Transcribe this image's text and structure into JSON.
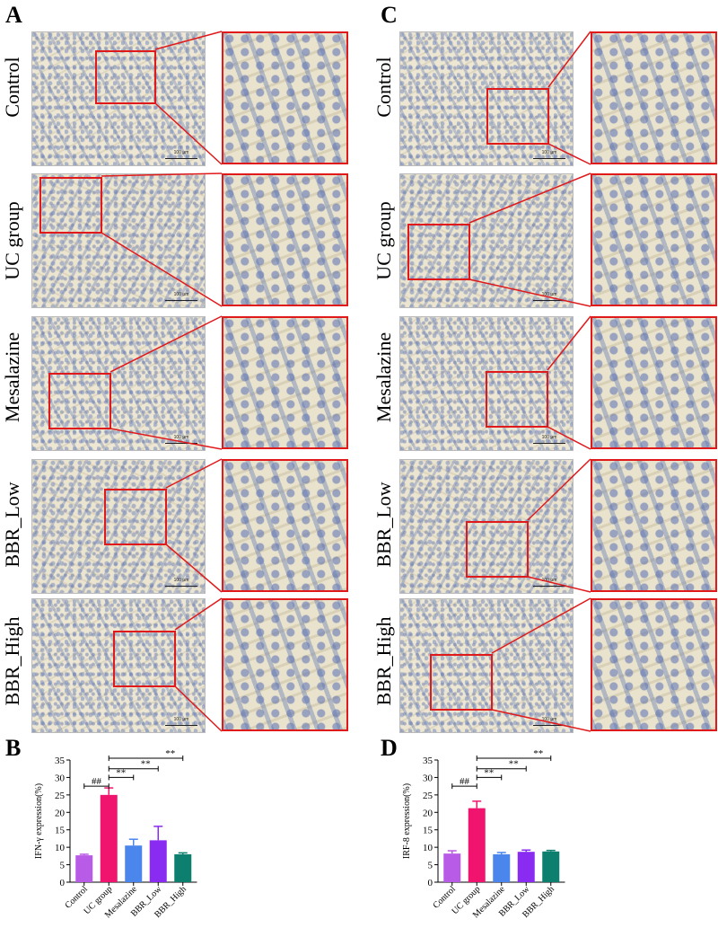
{
  "panels": {
    "a": "A",
    "b": "B",
    "c": "C",
    "d": "D"
  },
  "row_labels": [
    "Control",
    "UC group",
    "Mesalazine",
    "BBR_Low",
    "BBR_High"
  ],
  "scale_bar_label": "100 μm",
  "colors": {
    "highlight_box": "#e0191b",
    "control": "#b85be6",
    "uc_group": "#f0146e",
    "mesalazine": "#4a86ec",
    "bbr_low": "#8a2bf2",
    "bbr_high": "#0d7f6f"
  },
  "chart_data": [
    {
      "type": "bar",
      "panel": "B",
      "categories": [
        "Control",
        "UC group",
        "Mesalazine",
        "BBR_Low",
        "BBR_High"
      ],
      "values": [
        7.7,
        25.0,
        10.5,
        12.0,
        8.0
      ],
      "errors": [
        0.3,
        2.0,
        1.8,
        4.0,
        0.4
      ],
      "ylabel": "IFN-γ expression(%)",
      "ylim": [
        0,
        35
      ],
      "yticks": [
        0,
        5,
        10,
        15,
        20,
        25,
        30,
        35
      ],
      "significance": [
        {
          "from": 0,
          "to": 1,
          "label": "##"
        },
        {
          "from": 1,
          "to": 2,
          "label": "**"
        },
        {
          "from": 1,
          "to": 3,
          "label": "**"
        },
        {
          "from": 1,
          "to": 4,
          "label": "**"
        }
      ]
    },
    {
      "type": "bar",
      "panel": "D",
      "categories": [
        "Control",
        "UC group",
        "Mesalazine",
        "BBR_Low",
        "BBR_High"
      ],
      "values": [
        8.2,
        21.2,
        8.0,
        8.7,
        8.8
      ],
      "errors": [
        0.8,
        2.0,
        0.5,
        0.5,
        0.3
      ],
      "ylabel": "IRF-8 expression(%)",
      "ylim": [
        0,
        35
      ],
      "yticks": [
        0,
        5,
        10,
        15,
        20,
        25,
        30,
        35
      ],
      "significance": [
        {
          "from": 0,
          "to": 1,
          "label": "##"
        },
        {
          "from": 1,
          "to": 2,
          "label": "**"
        },
        {
          "from": 1,
          "to": 3,
          "label": "**"
        },
        {
          "from": 1,
          "to": 4,
          "label": "**"
        }
      ]
    }
  ]
}
